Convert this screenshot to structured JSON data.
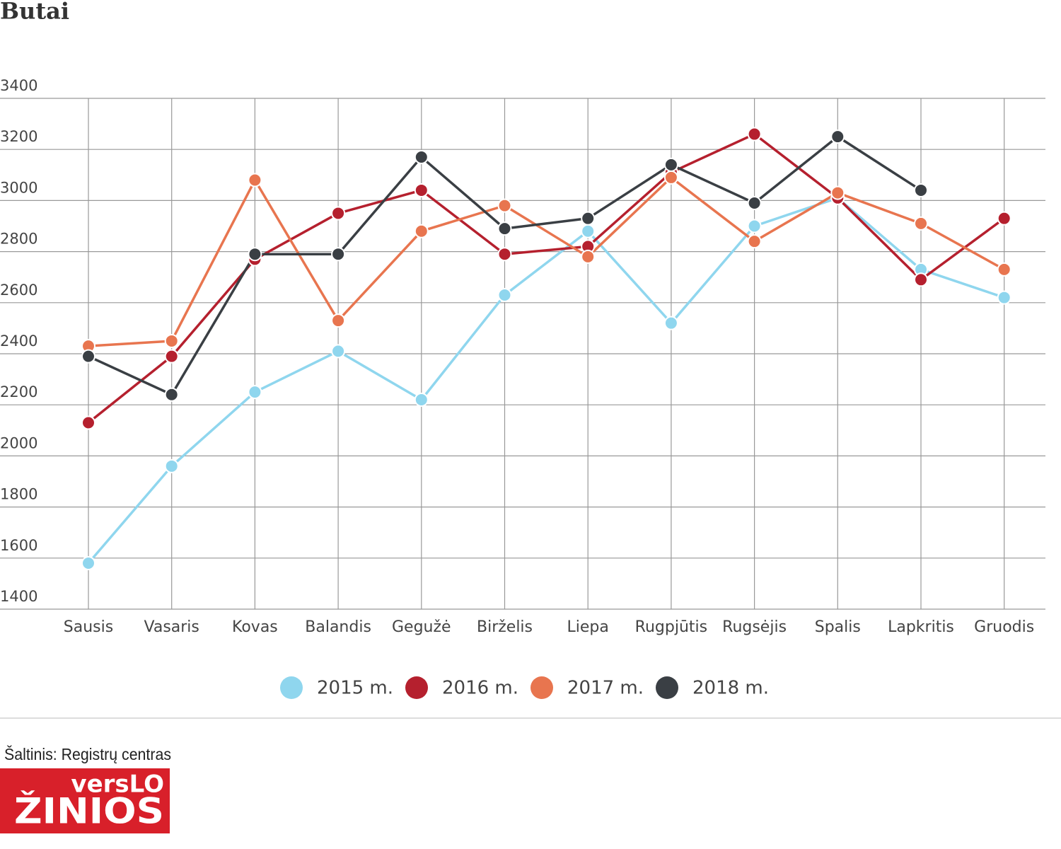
{
  "chart_data": {
    "type": "line",
    "title": "Butai",
    "categories": [
      "Sausis",
      "Vasaris",
      "Kovas",
      "Balandis",
      "Gegužė",
      "Birželis",
      "Liepa",
      "Rugpjūtis",
      "Rugsėjis",
      "Spalis",
      "Lapkritis",
      "Gruodis"
    ],
    "series": [
      {
        "name": "2015 m.",
        "color": "#8fd6ee",
        "values": [
          1580,
          1960,
          2250,
          2410,
          2220,
          2630,
          2880,
          2520,
          2900,
          3010,
          2730,
          2620
        ]
      },
      {
        "name": "2016 m.",
        "color": "#b5202e",
        "values": [
          2130,
          2390,
          2770,
          2950,
          3040,
          2790,
          2820,
          3110,
          3260,
          3010,
          2690,
          2930
        ]
      },
      {
        "name": "2017 m.",
        "color": "#e8754f",
        "values": [
          2430,
          2450,
          3080,
          2530,
          2880,
          2980,
          2780,
          3090,
          2840,
          3030,
          2910,
          2730
        ]
      },
      {
        "name": "2018 m.",
        "color": "#3a3f44",
        "values": [
          2390,
          2240,
          2790,
          2790,
          3170,
          2890,
          2930,
          3140,
          2990,
          3250,
          3040,
          null
        ]
      }
    ],
    "ylim": [
      1400,
      3400
    ],
    "yticks": [
      1400,
      1600,
      1800,
      2000,
      2200,
      2400,
      2600,
      2800,
      3000,
      3200,
      3400
    ],
    "grid": true,
    "legend": "bottom"
  },
  "footer": {
    "source": "Šaltinis: Registrų centras",
    "logo": [
      "versLO",
      "ŽINIOS"
    ]
  }
}
